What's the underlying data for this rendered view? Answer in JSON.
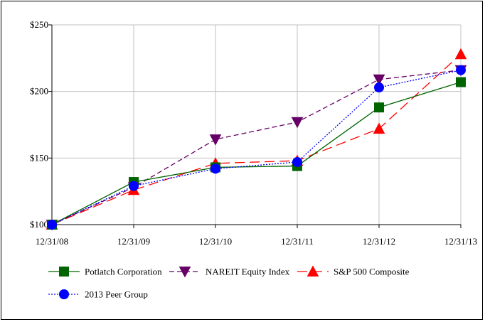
{
  "chart_data": {
    "type": "line",
    "categories": [
      "12/31/08",
      "12/31/09",
      "12/31/10",
      "12/31/11",
      "12/31/12",
      "12/31/13"
    ],
    "ylim": [
      100,
      250
    ],
    "yticks": [
      100,
      150,
      200,
      250
    ],
    "ytick_labels": [
      "$100",
      "$150",
      "$200",
      "$250"
    ],
    "grid": "vertical and horizontal",
    "legend_position": "bottom",
    "series": [
      {
        "name": "Potlatch Corporation",
        "color": "#006400",
        "dash": "solid",
        "marker": "square",
        "values": [
          100,
          132,
          143,
          144,
          188,
          207
        ]
      },
      {
        "name": "NAREIT Equity Index",
        "color": "#660066",
        "dash": "dashed",
        "marker": "triangle-down",
        "values": [
          100,
          128,
          164,
          177,
          209,
          216
        ]
      },
      {
        "name": "S&P 500 Composite",
        "color": "#ff0000",
        "dash": "longdash",
        "marker": "triangle-up",
        "values": [
          100,
          126,
          146,
          148,
          172,
          228
        ]
      },
      {
        "name": "2013 Peer Group",
        "color": "#0000ff",
        "dash": "dotted",
        "marker": "circle",
        "values": [
          100,
          129,
          142,
          147,
          203,
          216
        ]
      }
    ]
  }
}
